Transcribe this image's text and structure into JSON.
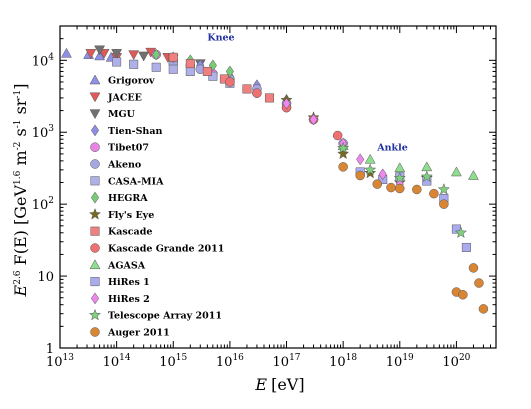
{
  "chart_data": {
    "type": "scatter",
    "title": "",
    "xlabel": "E [eV]",
    "xlabel_parts": {
      "symbol": "E",
      "unit": "[eV]"
    },
    "ylabel": "E^2.6 F(E) [GeV^1.6 m^-2 s^-1 sr^-1]",
    "ylabel_parts": {
      "lead": "E",
      "exp1": "2.6",
      "func": " F(E) [GeV",
      "exp2": "1.6",
      "m": " m",
      "e_m": "-2",
      "s": " s",
      "e_s": "-1",
      "sr": " sr",
      "e_sr": "-1",
      "close": "]"
    },
    "xscale": "log",
    "yscale": "log",
    "xlim": [
      10000000000000.0,
      5e+20
    ],
    "ylim": [
      1,
      30000
    ],
    "x_tick_labels": [
      {
        "value": 10000000000000.0,
        "base": "10",
        "exp": "13"
      },
      {
        "value": 100000000000000.0,
        "base": "10",
        "exp": "14"
      },
      {
        "value": 1000000000000000.0,
        "base": "10",
        "exp": "15"
      },
      {
        "value": 1e+16,
        "base": "10",
        "exp": "16"
      },
      {
        "value": 1e+17,
        "base": "10",
        "exp": "17"
      },
      {
        "value": 1e+18,
        "base": "10",
        "exp": "18"
      },
      {
        "value": 1e+19,
        "base": "10",
        "exp": "19"
      },
      {
        "value": 1e+20,
        "base": "10",
        "exp": "20"
      }
    ],
    "y_tick_labels": [
      {
        "value": 1,
        "base": "1",
        "exp": ""
      },
      {
        "value": 10,
        "base": "10",
        "exp": ""
      },
      {
        "value": 100,
        "base": "10",
        "exp": "2"
      },
      {
        "value": 1000,
        "base": "10",
        "exp": "3"
      },
      {
        "value": 10000,
        "base": "10",
        "exp": "4"
      }
    ],
    "grid": false,
    "legend_position": "left",
    "annotations": [
      {
        "text": "Knee",
        "x": 4000000000000000.0,
        "y": 19000
      },
      {
        "text": "Ankle",
        "x": 4e+18,
        "y": 560
      }
    ],
    "series": [
      {
        "name": "Grigorov",
        "marker": "triangle-up",
        "color": "#8f8fe8",
        "points": [
          [
            13000000000000.0,
            12500
          ],
          [
            32000000000000.0,
            12000
          ],
          [
            50000000000000.0,
            11500
          ],
          [
            80000000000000.0,
            11000
          ]
        ]
      },
      {
        "name": "JACEE",
        "marker": "triangle-down",
        "color": "#e05a5a",
        "points": [
          [
            35000000000000.0,
            12500
          ],
          [
            60000000000000.0,
            12500
          ],
          [
            100000000000000.0,
            11000
          ],
          [
            200000000000000.0,
            12000
          ],
          [
            400000000000000.0,
            13000
          ],
          [
            800000000000000.0,
            11000
          ]
        ]
      },
      {
        "name": "MGU",
        "marker": "triangle-down",
        "color": "#707070",
        "points": [
          [
            50000000000000.0,
            14000
          ],
          [
            100000000000000.0,
            12500
          ],
          [
            300000000000000.0,
            11500
          ],
          [
            1000000000000000.0,
            10500
          ],
          [
            3000000000000000.0,
            9000
          ]
        ]
      },
      {
        "name": "Tien-Shan",
        "marker": "diamond",
        "color": "#8e8ee6",
        "points": [
          [
            1000000000000000.0,
            9500
          ],
          [
            3000000000000000.0,
            8500
          ],
          [
            1e+16,
            6000
          ],
          [
            3e+16,
            4500
          ],
          [
            1e+17,
            2800
          ]
        ]
      },
      {
        "name": "Tibet07",
        "marker": "circle",
        "color": "#e884e8",
        "points": [
          [
            500000000000000.0,
            12000
          ],
          [
            1000000000000000.0,
            10000
          ],
          [
            2000000000000000.0,
            8500
          ],
          [
            5000000000000000.0,
            6500
          ],
          [
            1e+16,
            5000
          ],
          [
            3e+16,
            3500
          ],
          [
            1e+17,
            2200
          ]
        ]
      },
      {
        "name": "Akeno",
        "marker": "circle",
        "color": "#a6a6e0",
        "points": [
          [
            1000000000000000.0,
            9000
          ],
          [
            3000000000000000.0,
            7500
          ],
          [
            1e+16,
            5500
          ],
          [
            3e+16,
            4000
          ],
          [
            1e+17,
            2500
          ],
          [
            3e+17,
            1500
          ],
          [
            1e+18,
            700
          ]
        ]
      },
      {
        "name": "CASA-MIA",
        "marker": "square",
        "color": "#b0b0e8",
        "points": [
          [
            100000000000000.0,
            9500
          ],
          [
            200000000000000.0,
            8800
          ],
          [
            500000000000000.0,
            8000
          ],
          [
            1000000000000000.0,
            7500
          ],
          [
            2000000000000000.0,
            7000
          ],
          [
            5000000000000000.0,
            6000
          ],
          [
            1e+16,
            4800
          ]
        ]
      },
      {
        "name": "HEGRA",
        "marker": "diamond",
        "color": "#77cc77",
        "points": [
          [
            500000000000000.0,
            12000
          ],
          [
            1000000000000000.0,
            11000
          ],
          [
            2000000000000000.0,
            10000
          ],
          [
            5000000000000000.0,
            8500
          ],
          [
            1e+16,
            7000
          ]
        ]
      },
      {
        "name": "Fly's Eye",
        "marker": "star",
        "color": "#7a6a20",
        "points": [
          [
            1e+17,
            2800
          ],
          [
            3e+17,
            1600
          ],
          [
            1e+18,
            500
          ],
          [
            3e+18,
            270
          ],
          [
            1e+19,
            200
          ],
          [
            3e+19,
            230
          ]
        ]
      },
      {
        "name": "Kascade",
        "marker": "square",
        "color": "#f07f7f",
        "points": [
          [
            1000000000000000.0,
            11000
          ],
          [
            2000000000000000.0,
            9000
          ],
          [
            4000000000000000.0,
            7000
          ],
          [
            8000000000000000.0,
            5500
          ],
          [
            2e+16,
            4000
          ],
          [
            5e+16,
            3000
          ]
        ]
      },
      {
        "name": "Kascade Grande 2011",
        "marker": "circle",
        "color": "#ee7070",
        "points": [
          [
            1e+16,
            5000
          ],
          [
            3e+16,
            3500
          ],
          [
            1e+17,
            2200
          ],
          [
            3e+17,
            1500
          ],
          [
            8e+17,
            900
          ]
        ]
      },
      {
        "name": "AGASA",
        "marker": "triangle-up",
        "color": "#8fdd8f",
        "points": [
          [
            1e+18,
            650
          ],
          [
            3e+18,
            420
          ],
          [
            1e+19,
            320
          ],
          [
            3e+19,
            330
          ],
          [
            1e+20,
            280
          ],
          [
            2e+20,
            250
          ]
        ]
      },
      {
        "name": "HiRes 1",
        "marker": "square",
        "color": "#aaaaee",
        "points": [
          [
            2e+18,
            280
          ],
          [
            5e+18,
            220
          ],
          [
            1e+19,
            240
          ],
          [
            3e+19,
            210
          ],
          [
            6e+19,
            120
          ],
          [
            1e+20,
            45
          ],
          [
            1.5e+20,
            25
          ]
        ]
      },
      {
        "name": "HiRes 2",
        "marker": "diamond",
        "color": "#ee88ee",
        "points": [
          [
            1e+17,
            2500
          ],
          [
            3e+17,
            1500
          ],
          [
            1e+18,
            700
          ],
          [
            2e+18,
            420
          ],
          [
            5e+18,
            260
          ],
          [
            1e+19,
            190
          ]
        ]
      },
      {
        "name": "Telescope Array 2011",
        "marker": "star",
        "color": "#7fcf7f",
        "points": [
          [
            1e+18,
            600
          ],
          [
            3e+18,
            300
          ],
          [
            1e+19,
            230
          ],
          [
            3e+19,
            240
          ],
          [
            6e+19,
            160
          ],
          [
            1.2e+20,
            40
          ]
        ]
      },
      {
        "name": "Auger 2011",
        "marker": "circle",
        "color": "#d98634",
        "points": [
          [
            1e+18,
            330
          ],
          [
            2e+18,
            250
          ],
          [
            4e+18,
            190
          ],
          [
            7e+18,
            170
          ],
          [
            1e+19,
            165
          ],
          [
            2e+19,
            160
          ],
          [
            4e+19,
            140
          ],
          [
            6e+19,
            100
          ],
          [
            1e+20,
            6
          ],
          [
            1.3e+20,
            5.5
          ],
          [
            2e+20,
            13
          ],
          [
            2.5e+20,
            8
          ],
          [
            3e+20,
            3.5
          ]
        ]
      }
    ]
  }
}
